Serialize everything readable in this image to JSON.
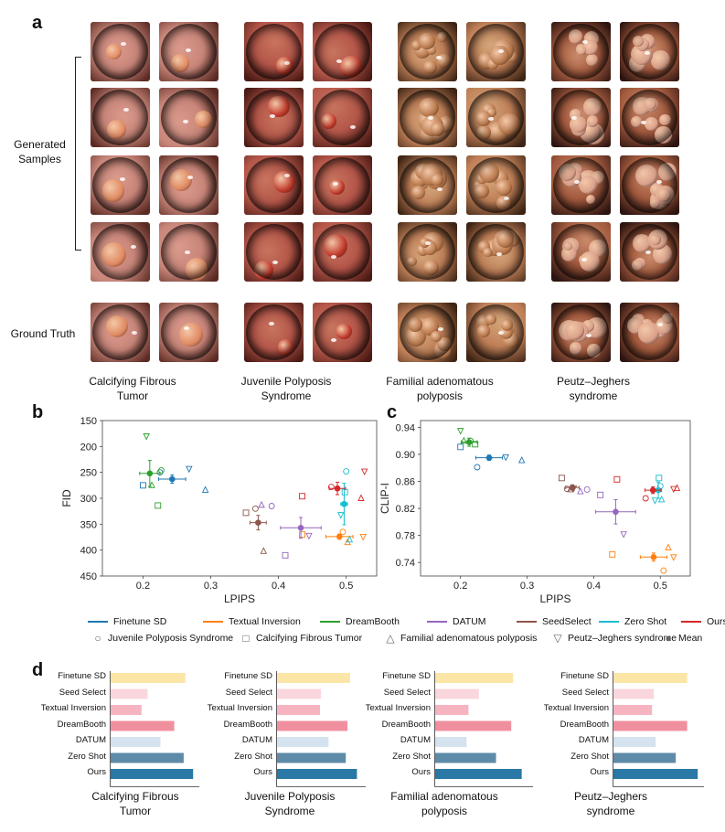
{
  "panels": {
    "a": "a",
    "b": "b",
    "c": "c",
    "d": "d"
  },
  "panel_a": {
    "generated_label": "Generated\nSamples",
    "ground_truth_label": "Ground Truth",
    "columns": [
      {
        "title_line1": "Calcifying Fibrous",
        "title_line2": "Tumor",
        "palette": "salmon"
      },
      {
        "title_line1": "Juvenile Polyposis",
        "title_line2": "Syndrome",
        "palette": "red"
      },
      {
        "title_line1": "Familial adenomatous",
        "title_line2": "polyposis",
        "palette": "tan"
      },
      {
        "title_line1": "Peutz–Jeghers",
        "title_line2": "syndrome",
        "palette": "brown"
      }
    ]
  },
  "colors": {
    "Finetune SD": "#1f77b4",
    "Textual Inversion": "#ff7f0e",
    "DreamBooth": "#2ca02c",
    "DATUM": "#9467bd",
    "SeedSelect": "#8c564b",
    "Zero Shot": "#17becf",
    "Ours": "#d62728"
  },
  "legend": {
    "methods": [
      "Finetune SD",
      "Textual Inversion",
      "DreamBooth",
      "DATUM",
      "SeedSelect",
      "Zero Shot",
      "Ours"
    ],
    "markers": [
      {
        "symbol": "○",
        "label": "Juvenile Polyposis Syndrome"
      },
      {
        "symbol": "□",
        "label": "Calcifying Fibrous Tumor"
      },
      {
        "symbol": "△",
        "label": "Familial adenomatous polyposis"
      },
      {
        "symbol": "▽",
        "label": "Peutz–Jeghers syndrome"
      },
      {
        "symbol": "●",
        "label": "Mean"
      }
    ]
  },
  "chart_data": [
    {
      "id": "b",
      "type": "scatter",
      "xlabel": "LPIPS",
      "ylabel": "FID",
      "xlim": [
        0.14,
        0.545
      ],
      "ylim": [
        450,
        150
      ],
      "y_inverted": true,
      "xticks": [
        "0.2",
        "0.3",
        "0.4",
        "0.5"
      ],
      "xtick_values": [
        0.2,
        0.3,
        0.4,
        0.5
      ],
      "yticks": [
        "150",
        "200",
        "250",
        "300",
        "350",
        "400",
        "450"
      ],
      "ytick_values": [
        150,
        200,
        250,
        300,
        350,
        400,
        450
      ],
      "series": [
        {
          "name": "Finetune SD",
          "points": [
            [
              0.225,
              250,
              "o"
            ],
            [
              0.2,
              275,
              "s"
            ],
            [
              0.268,
              243,
              "v"
            ],
            [
              0.292,
              284,
              "^"
            ]
          ],
          "mean": [
            0.243,
            263
          ],
          "xerr": 0.02,
          "yerr": 8
        },
        {
          "name": "Textual Inversion",
          "points": [
            [
              0.495,
              365,
              "o"
            ],
            [
              0.435,
              370,
              "s"
            ],
            [
              0.502,
              385,
              "^"
            ],
            [
              0.525,
              374,
              "v"
            ]
          ],
          "mean": [
            0.49,
            374
          ],
          "xerr": 0.02,
          "yerr": 5
        },
        {
          "name": "DreamBooth",
          "points": [
            [
              0.227,
              246,
              "o"
            ],
            [
              0.222,
              314,
              "s"
            ],
            [
              0.213,
              275,
              "^"
            ],
            [
              0.205,
              180,
              "v"
            ]
          ],
          "mean": [
            0.21,
            252
          ],
          "xerr": 0.015,
          "yerr": 25
        },
        {
          "name": "DATUM",
          "points": [
            [
              0.39,
              315,
              "o"
            ],
            [
              0.375,
              313,
              "^"
            ],
            [
              0.445,
              372,
              "v"
            ],
            [
              0.41,
              410,
              "s"
            ]
          ],
          "mean": [
            0.433,
            357
          ],
          "xerr": 0.03,
          "yerr": 20
        },
        {
          "name": "SeedSelect",
          "points": [
            [
              0.366,
              320,
              "o"
            ],
            [
              0.352,
              328,
              "s"
            ],
            [
              0.378,
              402,
              "^"
            ]
          ],
          "mean": [
            0.37,
            347
          ],
          "xerr": 0.012,
          "yerr": 14
        },
        {
          "name": "Zero Shot",
          "points": [
            [
              0.5,
              248,
              "o"
            ],
            [
              0.498,
              288,
              "s"
            ],
            [
              0.505,
              380,
              "^"
            ],
            [
              0.492,
              332,
              "v"
            ]
          ],
          "mean": [
            0.497,
            311
          ],
          "xerr": 0.005,
          "yerr": 40
        },
        {
          "name": "Ours",
          "points": [
            [
              0.478,
              278,
              "o"
            ],
            [
              0.435,
              296,
              "s"
            ],
            [
              0.522,
              300,
              "^"
            ],
            [
              0.527,
              248,
              "v"
            ]
          ],
          "mean": [
            0.487,
            281
          ],
          "xerr": 0.012,
          "yerr": 12
        }
      ]
    },
    {
      "id": "c",
      "type": "scatter",
      "xlabel": "LPIPS",
      "ylabel": "CLIP-I",
      "xlim": [
        0.14,
        0.545
      ],
      "ylim": [
        0.72,
        0.95
      ],
      "xticks": [
        "0.2",
        "0.3",
        "0.4",
        "0.5"
      ],
      "xtick_values": [
        0.2,
        0.3,
        0.4,
        0.5
      ],
      "yticks": [
        "0.74",
        "0.78",
        "0.82",
        "0.86",
        "0.90",
        "0.94"
      ],
      "ytick_values": [
        0.74,
        0.78,
        0.82,
        0.86,
        0.9,
        0.94
      ],
      "series": [
        {
          "name": "Finetune SD",
          "points": [
            [
              0.225,
              0.881,
              "o"
            ],
            [
              0.2,
              0.911,
              "s"
            ],
            [
              0.268,
              0.896,
              "v"
            ],
            [
              0.292,
              0.891,
              "^"
            ]
          ],
          "mean": [
            0.243,
            0.895
          ],
          "xerr": 0.02,
          "yerr": 0.004
        },
        {
          "name": "Textual Inversion",
          "points": [
            [
              0.505,
              0.728,
              "o"
            ],
            [
              0.428,
              0.752,
              "s"
            ],
            [
              0.512,
              0.762,
              "^"
            ],
            [
              0.52,
              0.748,
              "v"
            ]
          ],
          "mean": [
            0.49,
            0.748
          ],
          "xerr": 0.02,
          "yerr": 0.006
        },
        {
          "name": "DreamBooth",
          "points": [
            [
              0.215,
              0.92,
              "o"
            ],
            [
              0.222,
              0.915,
              "s"
            ],
            [
              0.205,
              0.92,
              "^"
            ],
            [
              0.2,
              0.935,
              "v"
            ]
          ],
          "mean": [
            0.213,
            0.918
          ],
          "xerr": 0.012,
          "yerr": 0.006
        },
        {
          "name": "DATUM",
          "points": [
            [
              0.39,
              0.848,
              "o"
            ],
            [
              0.41,
              0.84,
              "s"
            ],
            [
              0.38,
              0.845,
              "^"
            ],
            [
              0.445,
              0.782,
              "v"
            ]
          ],
          "mean": [
            0.433,
            0.815
          ],
          "xerr": 0.03,
          "yerr": 0.018
        },
        {
          "name": "SeedSelect",
          "points": [
            [
              0.36,
              0.849,
              "o"
            ],
            [
              0.352,
              0.865,
              "s"
            ],
            [
              0.365,
              0.848,
              "^"
            ],
            [
              0.37,
              0.85,
              "v"
            ]
          ],
          "mean": [
            0.368,
            0.851
          ],
          "xerr": 0.01,
          "yerr": 0.004
        },
        {
          "name": "Zero Shot",
          "points": [
            [
              0.5,
              0.853,
              "o"
            ],
            [
              0.498,
              0.865,
              "s"
            ],
            [
              0.502,
              0.833,
              "^"
            ],
            [
              0.492,
              0.832,
              "v"
            ]
          ],
          "mean": [
            0.497,
            0.847
          ],
          "xerr": 0.005,
          "yerr": 0.012
        },
        {
          "name": "Ours",
          "points": [
            [
              0.478,
              0.835,
              "o"
            ],
            [
              0.435,
              0.863,
              "s"
            ],
            [
              0.525,
              0.85,
              "^"
            ],
            [
              0.52,
              0.849,
              "v"
            ]
          ],
          "mean": [
            0.489,
            0.847
          ],
          "xerr": 0.012,
          "yerr": 0.005
        }
      ]
    },
    {
      "id": "d",
      "type": "bar",
      "orientation": "horizontal",
      "categories": [
        "Finetune SD",
        "Seed Select",
        "Textual Inversion",
        "DreamBooth",
        "DATUM",
        "Zero Shot",
        "Ours"
      ],
      "bar_colors": [
        "#fbe6a8",
        "#fad7dc",
        "#f6b4c0",
        "#f0909f",
        "#d5e2ef",
        "#5e8ba8",
        "#2a78a5"
      ],
      "series": [
        {
          "name": "Calcifying Fibrous\nTumor",
          "values": [
            0.87,
            0.43,
            0.36,
            0.74,
            0.58,
            0.85,
            0.96
          ]
        },
        {
          "name": "Juvenile Polyposis\nSyndrome",
          "values": [
            0.85,
            0.51,
            0.5,
            0.82,
            0.6,
            0.8,
            0.93
          ]
        },
        {
          "name": "Familial adenomatous\npolyposis",
          "values": [
            0.82,
            0.46,
            0.35,
            0.8,
            0.33,
            0.64,
            0.91
          ]
        },
        {
          "name": "Peutz–Jeghers\nsyndrome",
          "values": [
            0.84,
            0.46,
            0.44,
            0.84,
            0.48,
            0.71,
            0.96
          ]
        }
      ]
    }
  ]
}
